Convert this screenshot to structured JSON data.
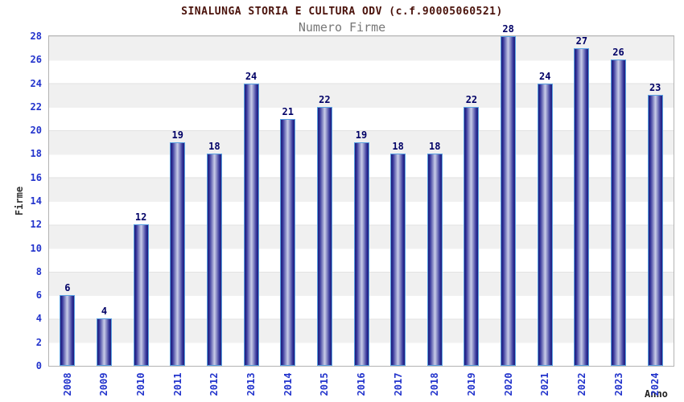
{
  "header": {
    "title": "SINALUNGA STORIA E CULTURA ODV (c.f.90005060521)",
    "subtitle": "Numero Firme"
  },
  "chart_data": {
    "type": "bar",
    "title": "SINALUNGA STORIA E CULTURA ODV (c.f.90005060521)",
    "subtitle": "Numero Firme",
    "categories": [
      "2008",
      "2009",
      "2010",
      "2011",
      "2012",
      "2013",
      "2014",
      "2015",
      "2016",
      "2017",
      "2018",
      "2019",
      "2020",
      "2021",
      "2022",
      "2023",
      "2024"
    ],
    "values": [
      6,
      4,
      12,
      19,
      18,
      24,
      21,
      22,
      19,
      18,
      18,
      22,
      28,
      24,
      27,
      26,
      23
    ],
    "xlabel": "Anno",
    "ylabel": "Firme",
    "ylim": [
      0,
      28
    ],
    "ytick_step": 2,
    "grid": "horizontal-bands",
    "legend": "none",
    "colors": {
      "title_text": "#4a120b",
      "subtitle_text": "#777777",
      "axis_tick_text": "#2233cc",
      "bar_value_text": "#000066",
      "axis_title_text": "#333333",
      "band_gray": "#f0f0f0",
      "band_white": "#ffffff",
      "plot_border": "#b3b3b3",
      "bar_border": "#5aa2e2",
      "bar_dark": "#1f1f7a",
      "bar_light": "#c9cde8"
    }
  }
}
